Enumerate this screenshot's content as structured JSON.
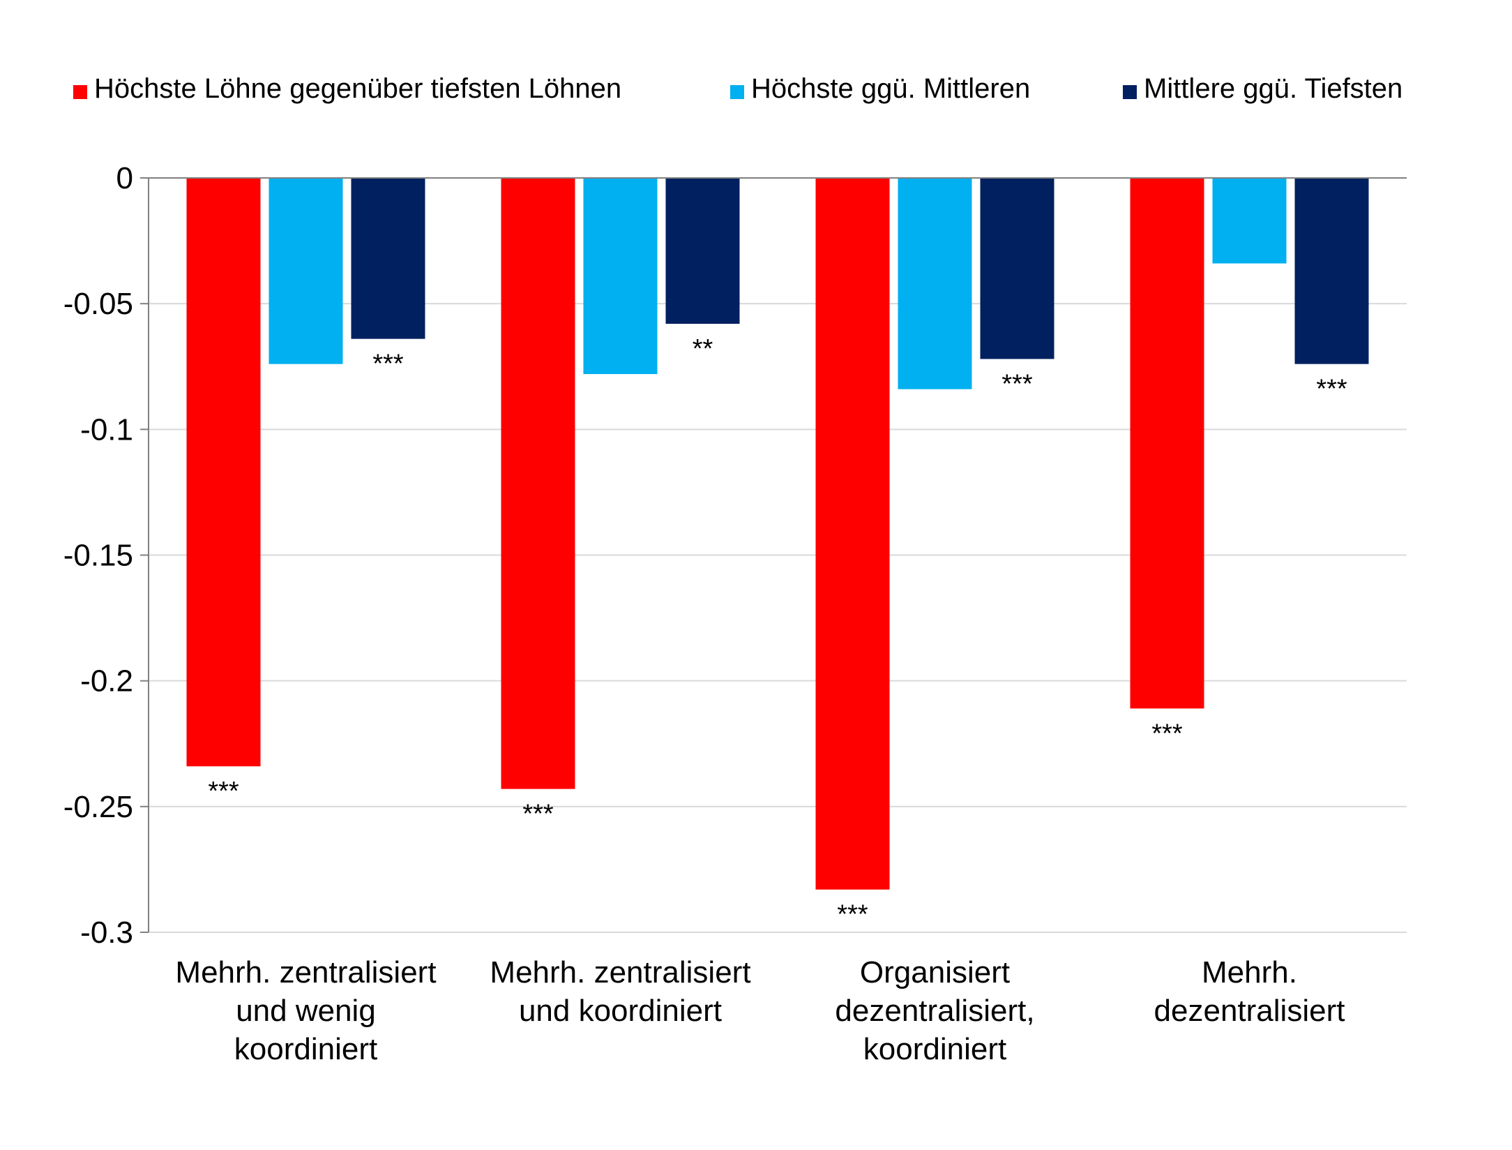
{
  "chart_data": {
    "type": "bar",
    "title": "",
    "xlabel": "",
    "ylabel": "",
    "ylim": [
      -0.3,
      0
    ],
    "yticks": [
      0,
      -0.05,
      -0.1,
      -0.15,
      -0.2,
      -0.25,
      -0.3
    ],
    "ytick_labels": [
      "0",
      "-0.05",
      "-0.1",
      "-0.15",
      "-0.2",
      "-0.25",
      "-0.3"
    ],
    "grid": true,
    "legend_position": "top",
    "categories": [
      [
        "Mehrh. zentralisiert",
        "und wenig",
        "koordiniert"
      ],
      [
        "Mehrh. zentralisiert",
        "und koordiniert"
      ],
      [
        "Organisiert",
        "dezentralisiert,",
        "koordiniert"
      ],
      [
        "Mehrh.",
        "dezentralisiert"
      ]
    ],
    "series": [
      {
        "name": "Höchste Löhne gegenüber tiefsten Löhnen",
        "color": "#FF0000",
        "values": [
          -0.234,
          -0.243,
          -0.283,
          -0.211
        ],
        "significance": [
          "***",
          "***",
          "***",
          "***"
        ]
      },
      {
        "name": "Höchste ggü. Mittleren",
        "color": "#00B0F0",
        "values": [
          -0.074,
          -0.078,
          -0.084,
          -0.034
        ],
        "significance": [
          "",
          "",
          "",
          ""
        ]
      },
      {
        "name": "Mittlere ggü. Tiefsten",
        "color": "#002060",
        "values": [
          -0.064,
          -0.058,
          -0.072,
          -0.074
        ],
        "significance": [
          "***",
          "**",
          "***",
          "***"
        ]
      }
    ]
  }
}
